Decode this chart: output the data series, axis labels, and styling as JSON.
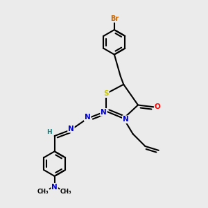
{
  "bg_color": "#ebebeb",
  "atom_colors": {
    "C": "#000000",
    "N": "#0000cc",
    "O": "#ff0000",
    "S": "#cccc00",
    "Br": "#cc6600",
    "H": "#008080"
  },
  "bond_color": "#000000",
  "bond_width": 1.5
}
